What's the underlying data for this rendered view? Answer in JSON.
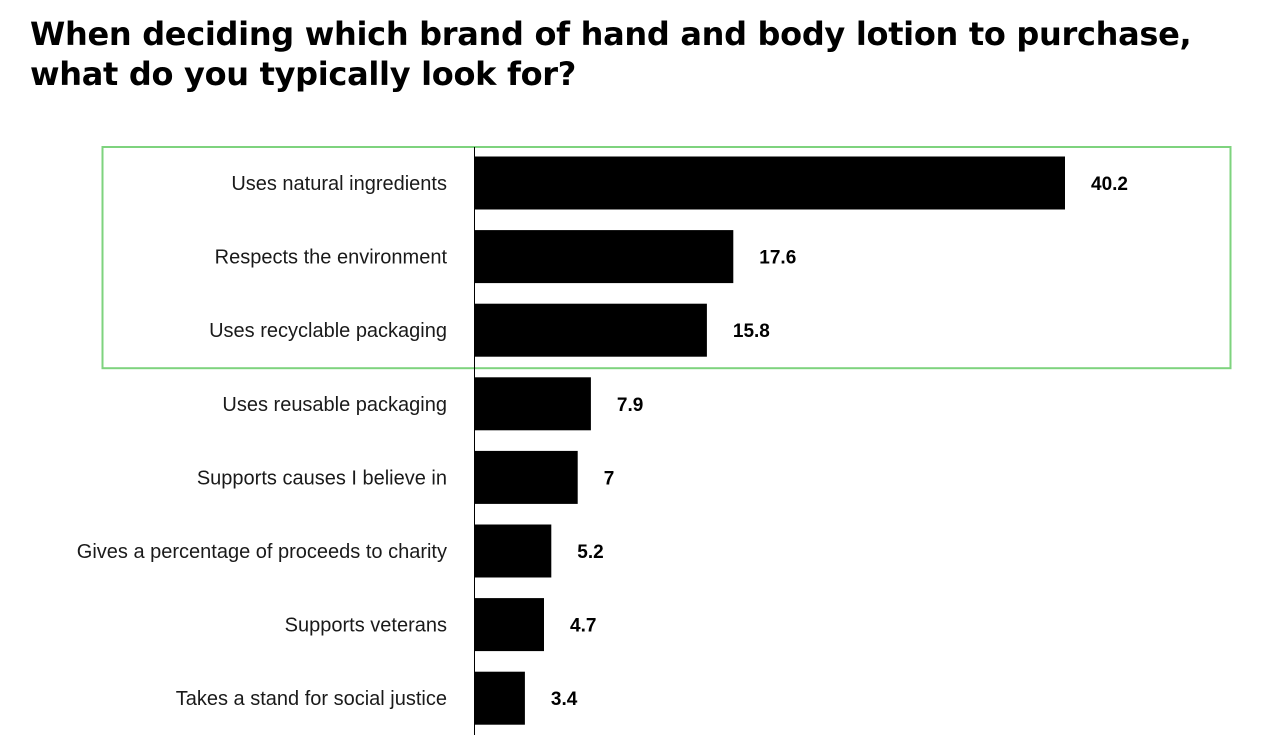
{
  "chart_data": {
    "type": "bar",
    "orientation": "horizontal",
    "title": "When deciding which brand of hand and body lotion to purchase, what do you typically look for?",
    "xlabel": "",
    "ylabel": "",
    "categories": [
      "Uses natural ingredients",
      "Respects the environment",
      "Uses recyclable packaging",
      "Uses reusable packaging",
      "Supports causes I believe in",
      "Gives a percentage of proceeds to charity",
      "Supports veterans",
      "Takes a stand for social justice"
    ],
    "values": [
      40.2,
      17.6,
      15.8,
      7.9,
      7,
      5.2,
      4.7,
      3.4
    ],
    "value_labels": [
      "40.2",
      "17.6",
      "15.8",
      "7.9",
      "7",
      "5.2",
      "4.7",
      "3.4"
    ],
    "xlim": [
      0,
      40.2
    ],
    "grid": false,
    "legend": "none",
    "highlight": {
      "categories": [
        "Uses natural ingredients",
        "Respects the environment",
        "Uses recyclable packaging"
      ],
      "color": "#7ed37e"
    },
    "bar_color": "#000000"
  }
}
